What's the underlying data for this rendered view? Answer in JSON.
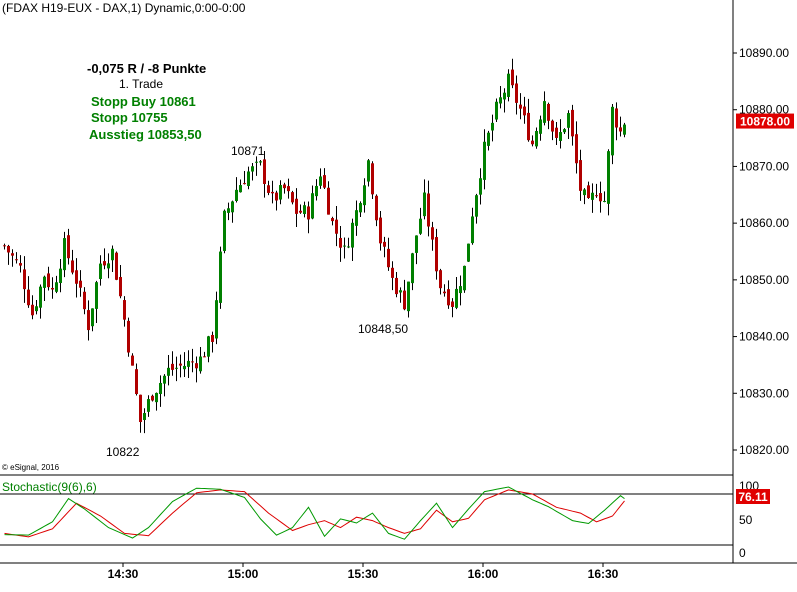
{
  "header": {
    "title": "(FDAX H19-EUX - DAX,1) Dynamic,0:00-0:00",
    "copyright": "© eSignal, 2016"
  },
  "colors": {
    "up_candle": "#008000",
    "down_candle": "#b00000",
    "wick": "#000000",
    "annotation_green": "#008000",
    "price_badge": "#e00000",
    "stoch_k": "#009900",
    "stoch_d": "#dd0000"
  },
  "annotations": {
    "trade_result": "-0,075 R / -8 Punkte",
    "trade_number": "1. Trade",
    "stop_buy": "Stopp Buy 10861",
    "stop": "Stopp 10755",
    "exit": "Ausstieg 10853,50",
    "high_label": "10871",
    "low_label_mid": "10848,50",
    "low_label_left": "10822"
  },
  "chart_data": [
    {
      "type": "candlestick",
      "title": "(FDAX H19-EUX - DAX,1) Dynamic,0:00-0:00",
      "x_ticks": [
        "14:30",
        "15:00",
        "15:30",
        "16:00",
        "16:30"
      ],
      "x_tick_bars": [
        30,
        60,
        90,
        120,
        150
      ],
      "y_ticks": [
        "10820.00",
        "10830.00",
        "10840.00",
        "10850.00",
        "10860.00",
        "10870.00",
        "10880.00",
        "10890.00"
      ],
      "ylim": [
        10816,
        10899
      ],
      "last_price": "10878.00",
      "last_price_value": 10878,
      "grid": false,
      "bar_count": 156,
      "ohlc_note": "values estimated from the chart; each bar = 1 minute",
      "anchors": [
        [
          0,
          10856
        ],
        [
          4,
          10852
        ],
        [
          7,
          10844
        ],
        [
          10,
          10851
        ],
        [
          12,
          10848
        ],
        [
          15,
          10856
        ],
        [
          18,
          10850
        ],
        [
          21,
          10842
        ],
        [
          24,
          10853
        ],
        [
          27,
          10855
        ],
        [
          30,
          10843
        ],
        [
          34,
          10825
        ],
        [
          37,
          10830
        ],
        [
          41,
          10834
        ],
        [
          45,
          10835
        ],
        [
          49,
          10836
        ],
        [
          52,
          10840
        ],
        [
          55,
          10861
        ],
        [
          58,
          10866
        ],
        [
          61,
          10869
        ],
        [
          64,
          10870
        ],
        [
          67,
          10864
        ],
        [
          70,
          10866
        ],
        [
          73,
          10862
        ],
        [
          76,
          10862
        ],
        [
          79,
          10869
        ],
        [
          82,
          10860
        ],
        [
          85,
          10855
        ],
        [
          88,
          10862
        ],
        [
          91,
          10871
        ],
        [
          94,
          10857
        ],
        [
          97,
          10850
        ],
        [
          100,
          10846
        ],
        [
          103,
          10858
        ],
        [
          105,
          10864
        ],
        [
          107,
          10856
        ],
        [
          109,
          10849
        ],
        [
          112,
          10846
        ],
        [
          115,
          10852
        ],
        [
          117,
          10862
        ],
        [
          120,
          10873
        ],
        [
          123,
          10880
        ],
        [
          126,
          10885
        ],
        [
          129,
          10880
        ],
        [
          132,
          10874
        ],
        [
          135,
          10882
        ],
        [
          138,
          10874
        ],
        [
          141,
          10879
        ],
        [
          144,
          10866
        ],
        [
          146,
          10863
        ],
        [
          148,
          10866
        ],
        [
          150,
          10864
        ],
        [
          152,
          10880
        ],
        [
          154,
          10876
        ],
        [
          155,
          10878
        ]
      ],
      "oscillator": {
        "name": "Stochastic(9(6),6)",
        "ylim": [
          0,
          100
        ],
        "y_ticks": [
          "0",
          "50",
          "100"
        ],
        "upper_band": 80,
        "lower_band": 20,
        "last_value": "76.11",
        "last_value_num": 76.11,
        "k_anchors": [
          [
            0,
            18
          ],
          [
            6,
            17
          ],
          [
            12,
            40
          ],
          [
            16,
            80
          ],
          [
            20,
            62
          ],
          [
            26,
            30
          ],
          [
            32,
            12
          ],
          [
            36,
            30
          ],
          [
            42,
            75
          ],
          [
            48,
            98
          ],
          [
            54,
            96
          ],
          [
            60,
            82
          ],
          [
            64,
            45
          ],
          [
            68,
            17
          ],
          [
            72,
            30
          ],
          [
            76,
            65
          ],
          [
            80,
            15
          ],
          [
            84,
            45
          ],
          [
            88,
            38
          ],
          [
            92,
            55
          ],
          [
            96,
            20
          ],
          [
            100,
            10
          ],
          [
            104,
            42
          ],
          [
            108,
            72
          ],
          [
            112,
            30
          ],
          [
            116,
            62
          ],
          [
            120,
            92
          ],
          [
            126,
            100
          ],
          [
            132,
            78
          ],
          [
            136,
            66
          ],
          [
            142,
            42
          ],
          [
            146,
            37
          ],
          [
            150,
            60
          ],
          [
            154,
            85
          ],
          [
            155,
            80
          ]
        ],
        "d_anchors": [
          [
            0,
            20
          ],
          [
            6,
            14
          ],
          [
            12,
            28
          ],
          [
            18,
            72
          ],
          [
            24,
            50
          ],
          [
            30,
            20
          ],
          [
            36,
            16
          ],
          [
            42,
            55
          ],
          [
            48,
            90
          ],
          [
            54,
            95
          ],
          [
            60,
            92
          ],
          [
            66,
            55
          ],
          [
            72,
            25
          ],
          [
            76,
            35
          ],
          [
            80,
            42
          ],
          [
            84,
            30
          ],
          [
            88,
            48
          ],
          [
            92,
            42
          ],
          [
            96,
            30
          ],
          [
            100,
            20
          ],
          [
            104,
            28
          ],
          [
            108,
            60
          ],
          [
            112,
            40
          ],
          [
            116,
            46
          ],
          [
            120,
            78
          ],
          [
            126,
            95
          ],
          [
            132,
            88
          ],
          [
            138,
            65
          ],
          [
            144,
            55
          ],
          [
            148,
            40
          ],
          [
            152,
            50
          ],
          [
            155,
            76
          ]
        ]
      }
    }
  ]
}
